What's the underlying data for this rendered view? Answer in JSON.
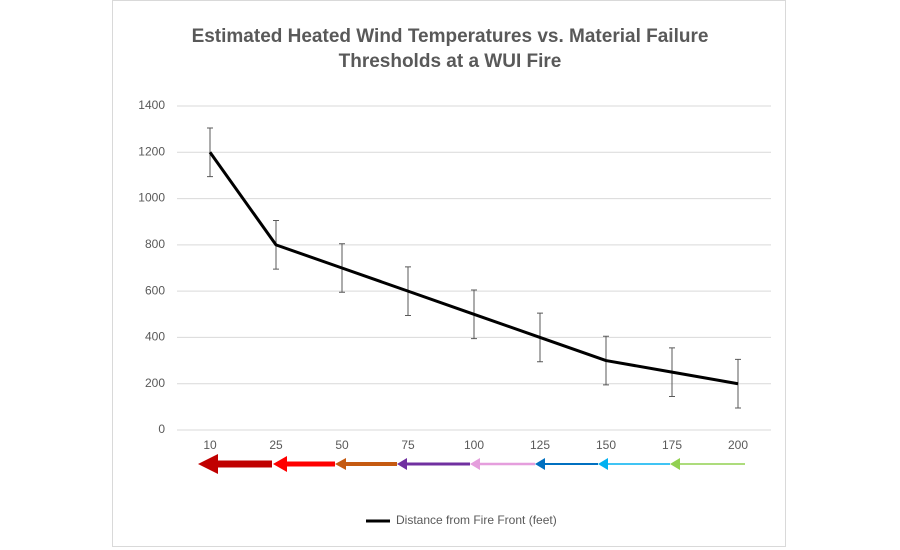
{
  "chart_data": {
    "type": "line",
    "title": "Estimated Heated Wind Temperatures vs. Material Failure Thresholds at a WUI Fire",
    "categories": [
      "10",
      "25",
      "50",
      "75",
      "100",
      "125",
      "150",
      "175",
      "200"
    ],
    "series": [
      {
        "name": "Distance from Fire Front (feet)",
        "color": "#000000",
        "values": [
          1200,
          800,
          700,
          600,
          500,
          400,
          300,
          250,
          200
        ],
        "errors": [
          105,
          105,
          105,
          105,
          105,
          105,
          105,
          105,
          105
        ]
      }
    ],
    "ylim": [
      0,
      1400
    ],
    "yticks": [
      0,
      200,
      400,
      600,
      800,
      1000,
      1200,
      1400
    ],
    "grid": true,
    "legend": "bottom"
  }
}
